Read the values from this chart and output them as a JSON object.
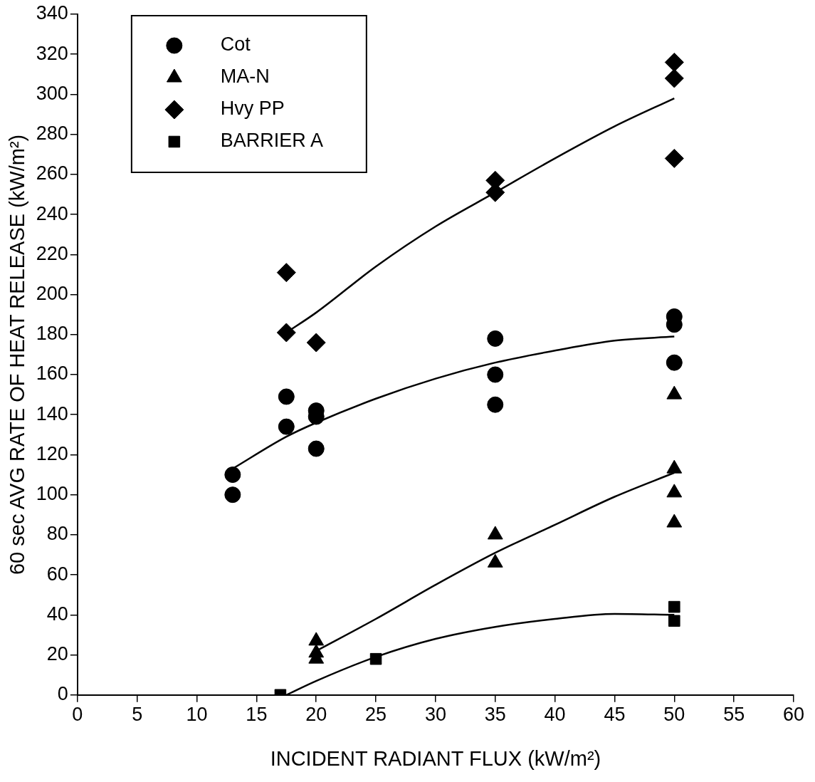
{
  "chart_data": {
    "type": "scatter",
    "xlabel": "INCIDENT RADIANT FLUX (kW/m²)",
    "ylabel": "60 sec AVG RATE OF HEAT RELEASE (kW/m²)",
    "xlim": [
      0,
      60
    ],
    "xticks": [
      0,
      5,
      10,
      15,
      20,
      25,
      30,
      35,
      40,
      45,
      50,
      55,
      60
    ],
    "ylim": [
      0,
      340
    ],
    "yticks": [
      0,
      20,
      40,
      60,
      80,
      100,
      120,
      140,
      160,
      180,
      200,
      220,
      240,
      260,
      280,
      300,
      320,
      340
    ],
    "grid": false,
    "legend": "top left",
    "series": [
      {
        "name": "Cot",
        "color": "#000000",
        "marker": "circle",
        "x": [
          13,
          13,
          17.5,
          17.5,
          20,
          20,
          20,
          35,
          35,
          35,
          50,
          50,
          50
        ],
        "values": [
          110,
          100,
          149,
          134,
          142,
          139,
          123,
          178,
          160,
          145,
          189,
          185,
          166
        ]
      },
      {
        "name": "MA-N",
        "color": "#000000",
        "marker": "triangle",
        "x": [
          20,
          20,
          20,
          35,
          35,
          50,
          50,
          50,
          50
        ],
        "values": [
          27,
          21,
          18,
          80,
          66,
          150,
          113,
          101,
          86
        ]
      },
      {
        "name": "Hvy PP",
        "color": "#000000",
        "marker": "diamond",
        "x": [
          17.5,
          17.5,
          20,
          35,
          35,
          50,
          50,
          50
        ],
        "values": [
          211,
          181,
          176,
          257,
          251,
          316,
          308,
          268
        ]
      },
      {
        "name": "BARRIER A",
        "color": "#000000",
        "marker": "square",
        "x": [
          17,
          25,
          50,
          50
        ],
        "values": [
          0,
          18,
          44,
          37
        ]
      },
      {
        "type": "line",
        "color": "#000000",
        "marker": "none",
        "x": [
          17.5,
          20,
          25,
          30,
          35,
          40,
          45,
          50
        ],
        "values": [
          181,
          191,
          214,
          234,
          251,
          268,
          284,
          298
        ]
      },
      {
        "type": "line",
        "color": "#000000",
        "marker": "none",
        "x": [
          13,
          17.5,
          20,
          25,
          30,
          35,
          40,
          45,
          50
        ],
        "values": [
          113,
          129,
          136,
          148,
          158,
          166,
          172,
          177,
          179
        ]
      },
      {
        "type": "line",
        "color": "#000000",
        "marker": "none",
        "x": [
          20,
          25,
          30,
          35,
          40,
          45,
          50
        ],
        "values": [
          22,
          38,
          55,
          71,
          85,
          99,
          111
        ]
      },
      {
        "type": "line",
        "color": "#000000",
        "marker": "none",
        "x": [
          17.5,
          20,
          25,
          30,
          35,
          40,
          45,
          50
        ],
        "values": [
          0,
          7,
          19,
          28,
          34,
          38,
          40.5,
          40
        ]
      }
    ]
  }
}
